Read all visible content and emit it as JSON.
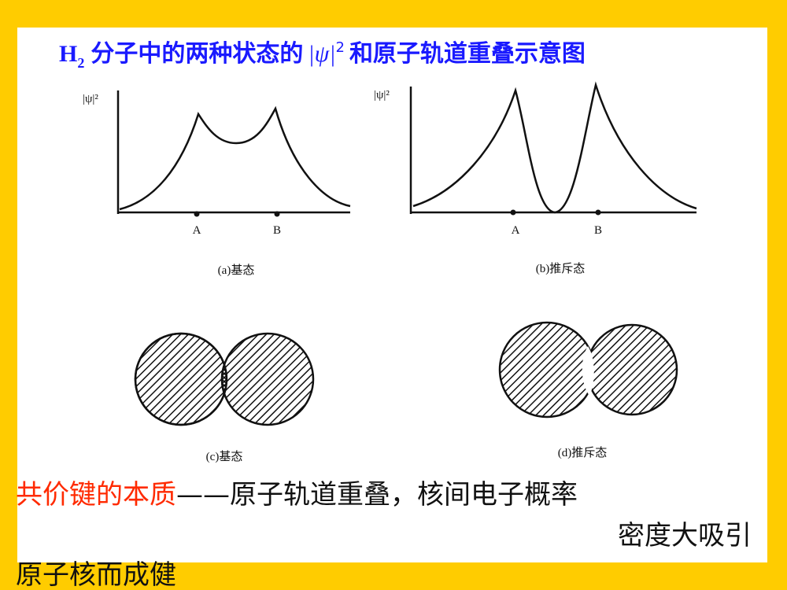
{
  "title": {
    "h": "H",
    "sub": "2",
    "part1": "分子中的两种状态的",
    "psi": "|ψ|",
    "sup": "2",
    "part2": "和原子轨道重叠示意图"
  },
  "panels": [
    {
      "ylabel": "|ψ|²",
      "a": "A",
      "b": "B",
      "caption": "(a)基态"
    },
    {
      "ylabel": "|ψ|²",
      "a": "A",
      "b": "B",
      "caption": "(b)推斥态"
    },
    {
      "caption": "(c)基态"
    },
    {
      "caption": "(d)推斥态"
    }
  ],
  "conclusion": {
    "highlight": "共价键的本质",
    "line1": "——原子轨道重叠，核间电子概率",
    "line2": "密度大吸引",
    "line3": "原子核而成健"
  }
}
